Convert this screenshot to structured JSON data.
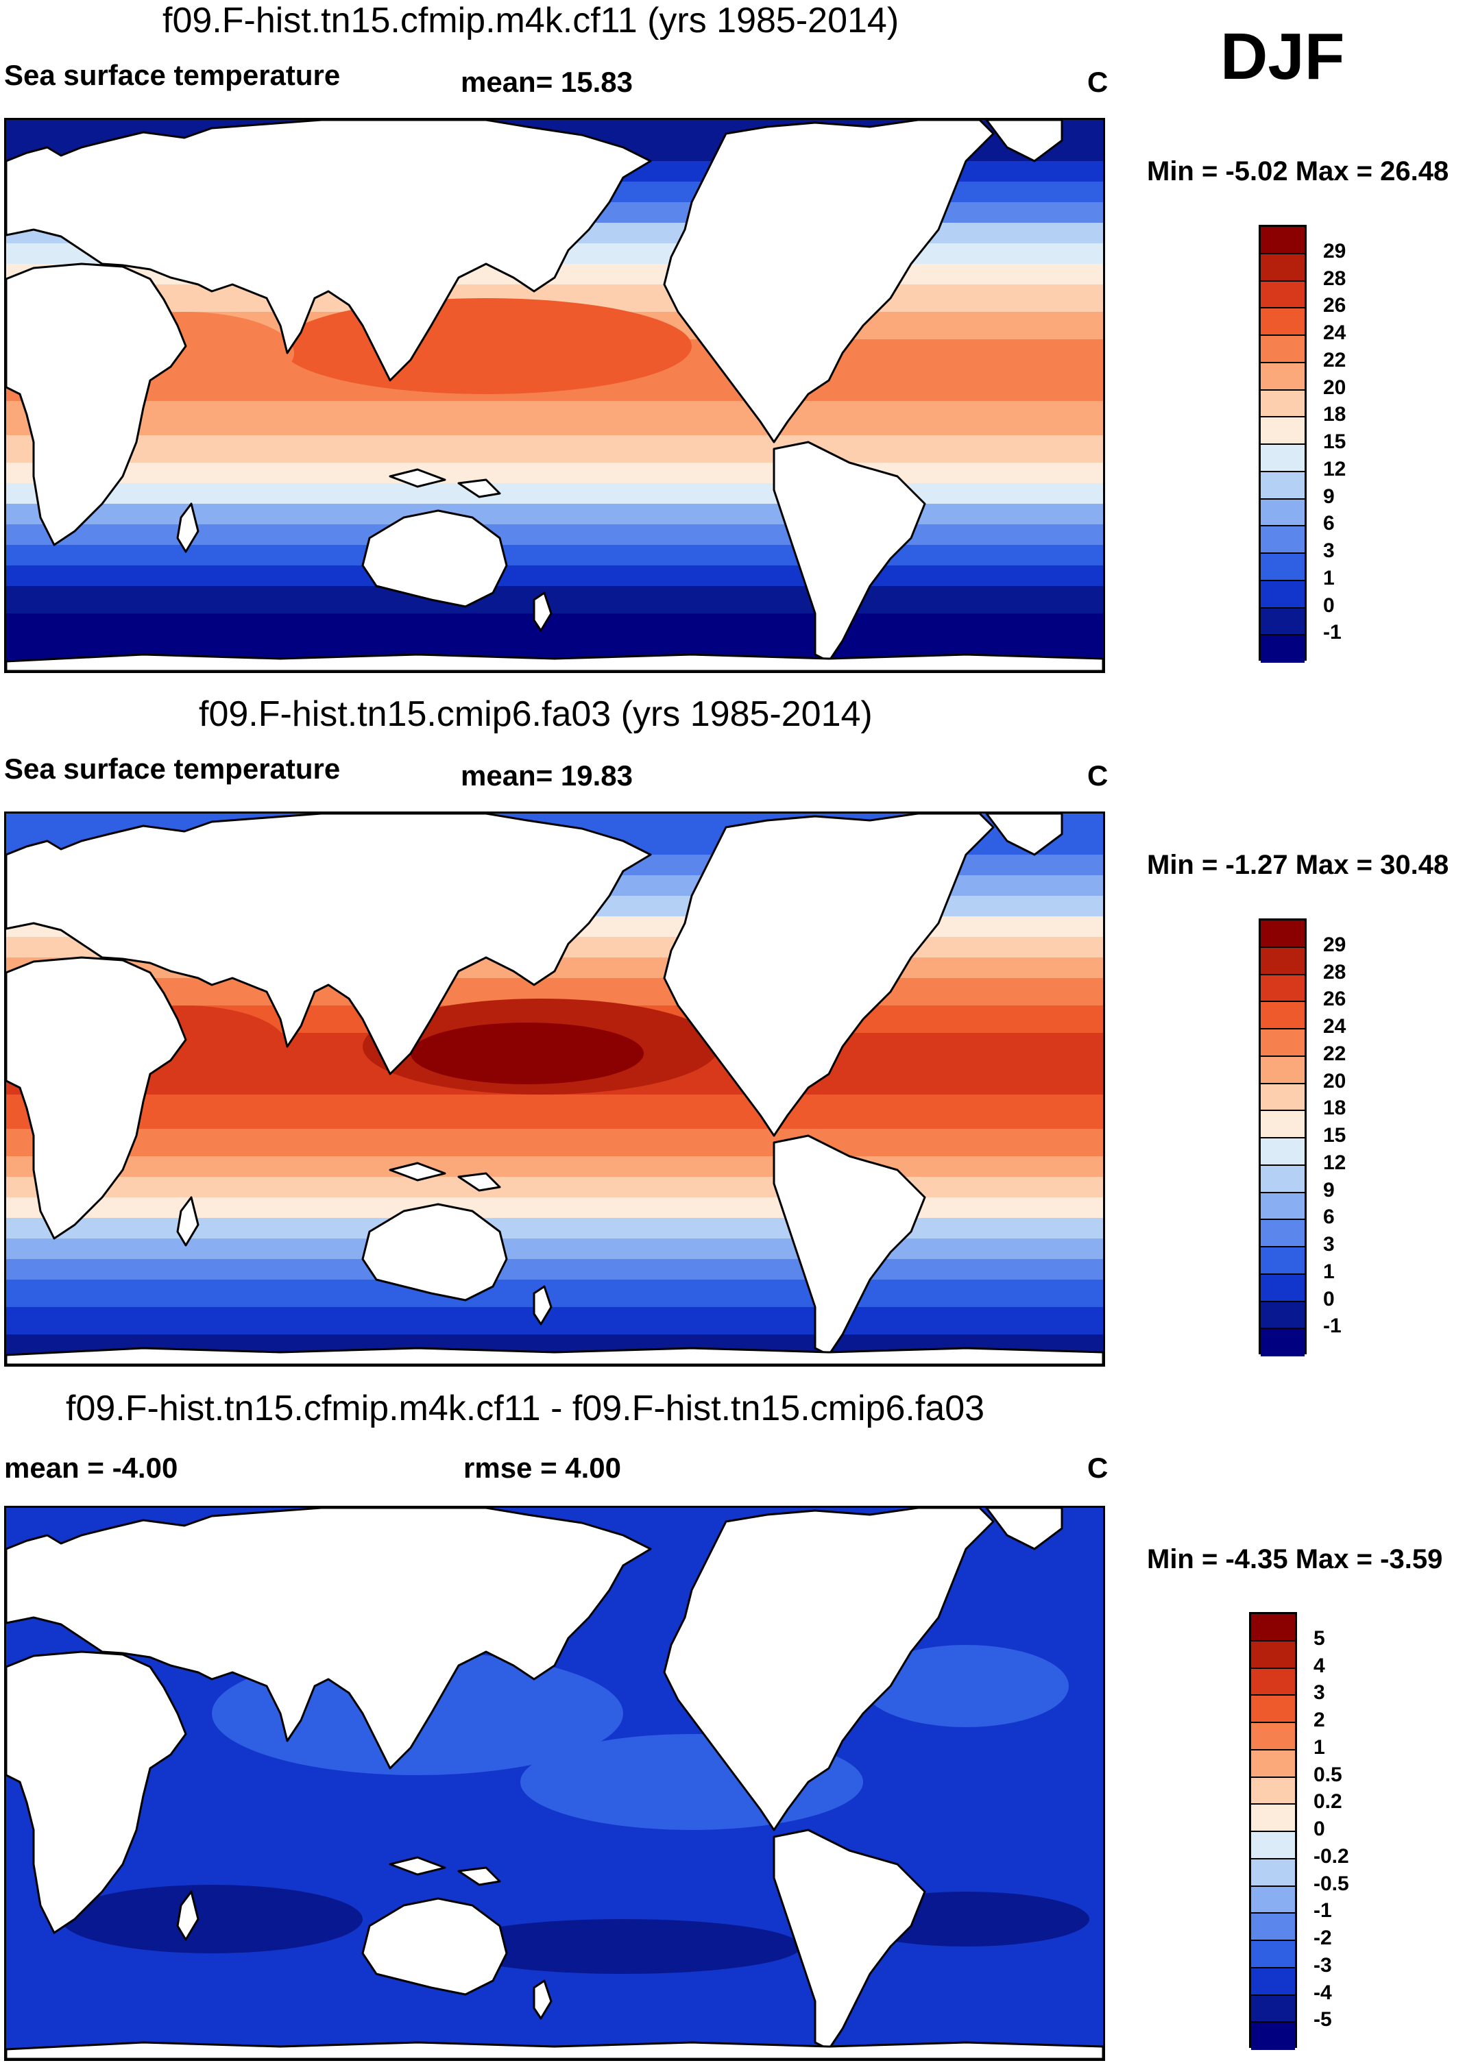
{
  "season": "DJF",
  "panels": [
    {
      "title": "f09.F-hist.tn15.cfmip.m4k.cf11 (yrs 1985-2014)",
      "left_label": "Sea surface temperature",
      "center_label": "mean=  15.83",
      "units": "C",
      "minmax": "Min =  -5.02 Max =  26.48",
      "palette": "warm4k",
      "colorbar_labels": [
        "29",
        "28",
        "26",
        "24",
        "22",
        "20",
        "18",
        "15",
        "12",
        "9",
        "6",
        "3",
        "1",
        "0",
        "-1"
      ]
    },
    {
      "title": "f09.F-hist.tn15.cmip6.fa03 (yrs 1985-2014)",
      "left_label": "Sea surface temperature",
      "center_label": "mean=  19.83",
      "units": "C",
      "minmax": "Min =  -1.27 Max =  30.48",
      "palette": "control",
      "colorbar_labels": [
        "29",
        "28",
        "26",
        "24",
        "22",
        "20",
        "18",
        "15",
        "12",
        "9",
        "6",
        "3",
        "1",
        "0",
        "-1"
      ]
    },
    {
      "title": "f09.F-hist.tn15.cfmip.m4k.cf11 - f09.F-hist.tn15.cmip6.fa03",
      "left_label": "mean =  -4.00",
      "center_label": "rmse =    4.00",
      "units": "C",
      "minmax": "Min =  -4.35 Max =  -3.59",
      "palette": "diff",
      "colorbar_labels": [
        "5",
        "4",
        "3",
        "2",
        "1",
        "0.5",
        "0.2",
        "0",
        "-0.2",
        "-0.5",
        "-1",
        "-2",
        "-3",
        "-4",
        "-5"
      ]
    }
  ],
  "colors": {
    "colorbar": [
      "#8b0000",
      "#b5200c",
      "#d8391a",
      "#ee5a2c",
      "#f6814e",
      "#fba97a",
      "#fdcfae",
      "#fdebdc",
      "#dcebf8",
      "#b4d0f5",
      "#8aaef2",
      "#5b87ec",
      "#2f5fe2",
      "#1236cc",
      "#081890",
      "#000080"
    ],
    "land": "#ffffff",
    "coast": "#000000"
  }
}
